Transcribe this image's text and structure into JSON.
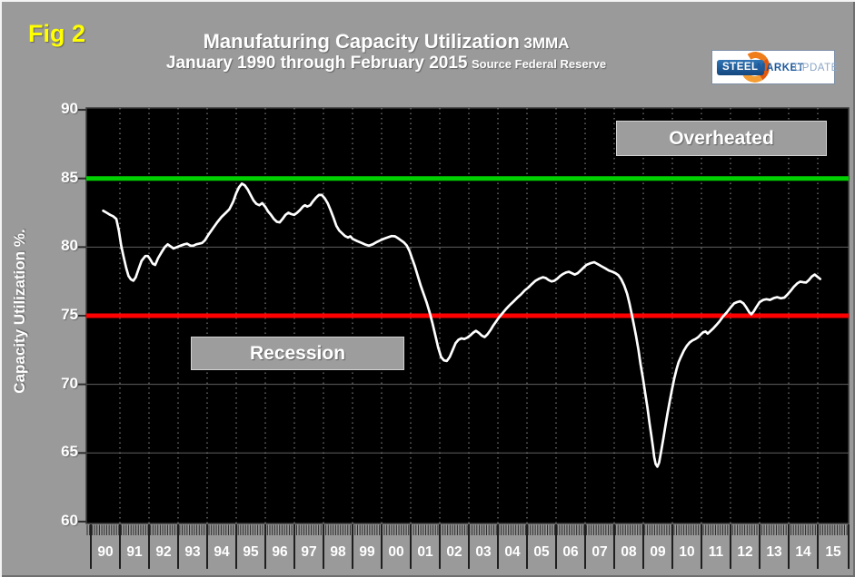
{
  "fig_label": "Fig 2",
  "title": {
    "main": "Manufaturing Capacity Utilization",
    "suffix": "3MMA"
  },
  "subtitle": {
    "main": "January 1990 through February 2015",
    "source": "Source Federal Reserve"
  },
  "logo": {
    "steel": "STEEL",
    "market": "MARKET",
    "update": "UPDATE"
  },
  "y_axis_title": "Capacity Utilization %.",
  "annotations": {
    "overheated": "Overheated",
    "recession": "Recession"
  },
  "colors": {
    "background": "#9a9a9a",
    "plot_background": "#000000",
    "data_line": "#ffffff",
    "overheated_line": "#00d000",
    "recession_line": "#ff0000",
    "fig_label": "#ffff00",
    "gridline_dashed": "#999999",
    "gridline_solid": "#5f5f5f"
  },
  "chart_data": {
    "type": "line",
    "title": "Manufaturing Capacity Utilization 3MMA",
    "subtitle": "January 1990 through February 2015",
    "source": "Federal Reserve",
    "frequency": "monthly, 3-month moving average",
    "xlabel": "",
    "ylabel": "Capacity Utilization %.",
    "ylim": [
      60,
      90
    ],
    "y_ticks": [
      90,
      85,
      80,
      75,
      70,
      65,
      60
    ],
    "x_categories": [
      "90",
      "91",
      "92",
      "93",
      "94",
      "95",
      "96",
      "97",
      "98",
      "99",
      "00",
      "01",
      "02",
      "03",
      "04",
      "05",
      "06",
      "07",
      "08",
      "09",
      "10",
      "11",
      "12",
      "13",
      "14",
      "15"
    ],
    "grid": {
      "vertical": "dashed yearly",
      "horizontal": "solid every 5 units"
    },
    "legend": "none",
    "reference_lines": [
      {
        "value": 85,
        "color": "#00d000",
        "label": "Overheated"
      },
      {
        "value": 75,
        "color": "#ff0000",
        "label": "Recession"
      }
    ],
    "series": [
      {
        "name": "Manufacturing Capacity Utilization 3MMA",
        "color": "#ffffff",
        "points": [
          [
            1990.38,
            82.65
          ],
          [
            1990.5,
            82.5
          ],
          [
            1990.62,
            82.35
          ],
          [
            1990.72,
            82.25
          ],
          [
            1990.83,
            82.05
          ],
          [
            1990.92,
            81.2
          ],
          [
            1991.0,
            80.1
          ],
          [
            1991.08,
            79.3
          ],
          [
            1991.17,
            78.5
          ],
          [
            1991.25,
            77.9
          ],
          [
            1991.33,
            77.65
          ],
          [
            1991.42,
            77.55
          ],
          [
            1991.5,
            77.8
          ],
          [
            1991.58,
            78.3
          ],
          [
            1991.7,
            79.0
          ],
          [
            1991.83,
            79.35
          ],
          [
            1991.92,
            79.35
          ],
          [
            1992.0,
            79.1
          ],
          [
            1992.08,
            78.8
          ],
          [
            1992.17,
            78.7
          ],
          [
            1992.27,
            79.2
          ],
          [
            1992.38,
            79.6
          ],
          [
            1992.5,
            80.0
          ],
          [
            1992.6,
            80.2
          ],
          [
            1992.7,
            80.05
          ],
          [
            1992.8,
            79.9
          ],
          [
            1992.92,
            80.0
          ],
          [
            1993.04,
            80.1
          ],
          [
            1993.17,
            80.2
          ],
          [
            1993.27,
            80.25
          ],
          [
            1993.38,
            80.1
          ],
          [
            1993.48,
            80.1
          ],
          [
            1993.58,
            80.2
          ],
          [
            1993.68,
            80.25
          ],
          [
            1993.78,
            80.3
          ],
          [
            1993.88,
            80.5
          ],
          [
            1994.0,
            80.9
          ],
          [
            1994.15,
            81.35
          ],
          [
            1994.3,
            81.8
          ],
          [
            1994.45,
            82.2
          ],
          [
            1994.6,
            82.5
          ],
          [
            1994.72,
            82.75
          ],
          [
            1994.85,
            83.3
          ],
          [
            1994.95,
            83.9
          ],
          [
            1995.05,
            84.35
          ],
          [
            1995.15,
            84.62
          ],
          [
            1995.25,
            84.5
          ],
          [
            1995.35,
            84.2
          ],
          [
            1995.45,
            83.8
          ],
          [
            1995.55,
            83.4
          ],
          [
            1995.65,
            83.15
          ],
          [
            1995.75,
            83.05
          ],
          [
            1995.85,
            83.2
          ],
          [
            1995.95,
            82.95
          ],
          [
            1996.05,
            82.6
          ],
          [
            1996.15,
            82.35
          ],
          [
            1996.25,
            82.05
          ],
          [
            1996.35,
            81.85
          ],
          [
            1996.45,
            81.8
          ],
          [
            1996.55,
            82.05
          ],
          [
            1996.65,
            82.35
          ],
          [
            1996.75,
            82.5
          ],
          [
            1996.85,
            82.4
          ],
          [
            1996.95,
            82.35
          ],
          [
            1997.05,
            82.5
          ],
          [
            1997.15,
            82.7
          ],
          [
            1997.25,
            82.95
          ],
          [
            1997.32,
            83.05
          ],
          [
            1997.4,
            82.95
          ],
          [
            1997.5,
            83.05
          ],
          [
            1997.6,
            83.35
          ],
          [
            1997.7,
            83.6
          ],
          [
            1997.8,
            83.8
          ],
          [
            1997.9,
            83.8
          ],
          [
            1998.0,
            83.55
          ],
          [
            1998.1,
            83.2
          ],
          [
            1998.2,
            82.7
          ],
          [
            1998.3,
            82.15
          ],
          [
            1998.4,
            81.55
          ],
          [
            1998.5,
            81.2
          ],
          [
            1998.6,
            81.0
          ],
          [
            1998.7,
            80.8
          ],
          [
            1998.8,
            80.7
          ],
          [
            1998.88,
            80.78
          ],
          [
            1998.96,
            80.6
          ],
          [
            1999.1,
            80.45
          ],
          [
            1999.25,
            80.32
          ],
          [
            1999.4,
            80.18
          ],
          [
            1999.52,
            80.1
          ],
          [
            1999.65,
            80.2
          ],
          [
            1999.8,
            80.38
          ],
          [
            1999.92,
            80.5
          ],
          [
            2000.05,
            80.62
          ],
          [
            2000.18,
            80.72
          ],
          [
            2000.3,
            80.8
          ],
          [
            2000.42,
            80.78
          ],
          [
            2000.52,
            80.65
          ],
          [
            2000.62,
            80.5
          ],
          [
            2000.72,
            80.35
          ],
          [
            2000.82,
            80.12
          ],
          [
            2000.92,
            79.7
          ],
          [
            2001.0,
            79.2
          ],
          [
            2001.1,
            78.6
          ],
          [
            2001.2,
            77.9
          ],
          [
            2001.3,
            77.2
          ],
          [
            2001.4,
            76.6
          ],
          [
            2001.5,
            76.0
          ],
          [
            2001.6,
            75.3
          ],
          [
            2001.7,
            74.5
          ],
          [
            2001.8,
            73.6
          ],
          [
            2001.9,
            72.7
          ],
          [
            2002.0,
            72.0
          ],
          [
            2002.1,
            71.75
          ],
          [
            2002.2,
            71.7
          ],
          [
            2002.3,
            72.0
          ],
          [
            2002.4,
            72.5
          ],
          [
            2002.5,
            73.0
          ],
          [
            2002.6,
            73.25
          ],
          [
            2002.7,
            73.35
          ],
          [
            2002.8,
            73.3
          ],
          [
            2002.9,
            73.4
          ],
          [
            2003.0,
            73.55
          ],
          [
            2003.1,
            73.75
          ],
          [
            2003.2,
            73.9
          ],
          [
            2003.3,
            73.75
          ],
          [
            2003.4,
            73.55
          ],
          [
            2003.5,
            73.45
          ],
          [
            2003.6,
            73.65
          ],
          [
            2003.7,
            73.95
          ],
          [
            2003.8,
            74.3
          ],
          [
            2003.9,
            74.6
          ],
          [
            2004.0,
            74.9
          ],
          [
            2004.1,
            75.15
          ],
          [
            2004.22,
            75.45
          ],
          [
            2004.35,
            75.75
          ],
          [
            2004.5,
            76.05
          ],
          [
            2004.62,
            76.3
          ],
          [
            2004.75,
            76.55
          ],
          [
            2004.88,
            76.85
          ],
          [
            2005.0,
            77.05
          ],
          [
            2005.12,
            77.3
          ],
          [
            2005.25,
            77.55
          ],
          [
            2005.38,
            77.7
          ],
          [
            2005.5,
            77.8
          ],
          [
            2005.6,
            77.75
          ],
          [
            2005.7,
            77.6
          ],
          [
            2005.8,
            77.5
          ],
          [
            2005.9,
            77.55
          ],
          [
            2006.0,
            77.7
          ],
          [
            2006.1,
            77.9
          ],
          [
            2006.2,
            78.05
          ],
          [
            2006.3,
            78.15
          ],
          [
            2006.4,
            78.2
          ],
          [
            2006.5,
            78.1
          ],
          [
            2006.6,
            78.0
          ],
          [
            2006.7,
            78.1
          ],
          [
            2006.8,
            78.3
          ],
          [
            2006.9,
            78.5
          ],
          [
            2007.0,
            78.7
          ],
          [
            2007.13,
            78.82
          ],
          [
            2007.27,
            78.9
          ],
          [
            2007.4,
            78.75
          ],
          [
            2007.52,
            78.6
          ],
          [
            2007.65,
            78.45
          ],
          [
            2007.77,
            78.3
          ],
          [
            2007.9,
            78.2
          ],
          [
            2008.0,
            78.1
          ],
          [
            2008.1,
            77.95
          ],
          [
            2008.2,
            77.65
          ],
          [
            2008.3,
            77.2
          ],
          [
            2008.4,
            76.6
          ],
          [
            2008.48,
            75.9
          ],
          [
            2008.56,
            75.1
          ],
          [
            2008.63,
            74.35
          ],
          [
            2008.71,
            73.5
          ],
          [
            2008.79,
            72.5
          ],
          [
            2008.86,
            71.5
          ],
          [
            2008.94,
            70.5
          ],
          [
            2009.02,
            69.4
          ],
          [
            2009.1,
            68.3
          ],
          [
            2009.17,
            67.2
          ],
          [
            2009.23,
            66.3
          ],
          [
            2009.29,
            65.4
          ],
          [
            2009.33,
            64.7
          ],
          [
            2009.38,
            64.2
          ],
          [
            2009.44,
            64.0
          ],
          [
            2009.5,
            64.3
          ],
          [
            2009.57,
            65.1
          ],
          [
            2009.65,
            66.1
          ],
          [
            2009.72,
            67.0
          ],
          [
            2009.79,
            67.9
          ],
          [
            2009.87,
            68.8
          ],
          [
            2009.94,
            69.6
          ],
          [
            2010.02,
            70.4
          ],
          [
            2010.1,
            71.1
          ],
          [
            2010.17,
            71.6
          ],
          [
            2010.25,
            72.0
          ],
          [
            2010.35,
            72.45
          ],
          [
            2010.45,
            72.8
          ],
          [
            2010.55,
            73.05
          ],
          [
            2010.65,
            73.2
          ],
          [
            2010.75,
            73.3
          ],
          [
            2010.85,
            73.45
          ],
          [
            2010.94,
            73.65
          ],
          [
            2011.02,
            73.8
          ],
          [
            2011.1,
            73.85
          ],
          [
            2011.17,
            73.7
          ],
          [
            2011.25,
            73.85
          ],
          [
            2011.35,
            74.05
          ],
          [
            2011.46,
            74.3
          ],
          [
            2011.58,
            74.6
          ],
          [
            2011.7,
            74.95
          ],
          [
            2011.83,
            75.25
          ],
          [
            2011.96,
            75.6
          ],
          [
            2012.08,
            75.9
          ],
          [
            2012.19,
            76.0
          ],
          [
            2012.29,
            76.05
          ],
          [
            2012.4,
            75.9
          ],
          [
            2012.5,
            75.6
          ],
          [
            2012.6,
            75.25
          ],
          [
            2012.67,
            75.1
          ],
          [
            2012.75,
            75.3
          ],
          [
            2012.85,
            75.65
          ],
          [
            2012.96,
            76.0
          ],
          [
            2013.08,
            76.15
          ],
          [
            2013.19,
            76.2
          ],
          [
            2013.31,
            76.15
          ],
          [
            2013.44,
            76.28
          ],
          [
            2013.56,
            76.35
          ],
          [
            2013.69,
            76.27
          ],
          [
            2013.81,
            76.32
          ],
          [
            2013.92,
            76.55
          ],
          [
            2014.02,
            76.8
          ],
          [
            2014.13,
            77.1
          ],
          [
            2014.25,
            77.35
          ],
          [
            2014.35,
            77.48
          ],
          [
            2014.46,
            77.44
          ],
          [
            2014.56,
            77.42
          ],
          [
            2014.65,
            77.6
          ],
          [
            2014.75,
            77.85
          ],
          [
            2014.85,
            78.0
          ],
          [
            2014.94,
            77.85
          ],
          [
            2015.04,
            77.68
          ]
        ]
      }
    ]
  }
}
